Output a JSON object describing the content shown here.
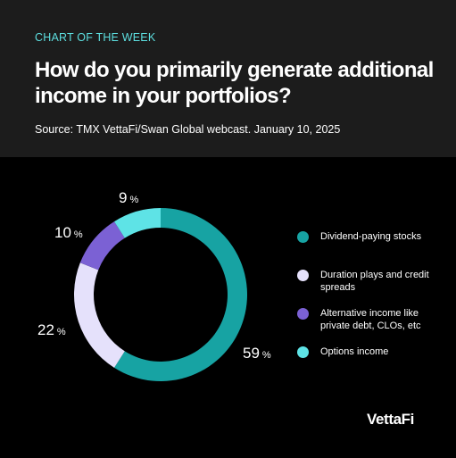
{
  "header": {
    "kicker": "CHART OF THE WEEK",
    "title": "How do you primarily generate additional income in your portfolios?",
    "source": "Source: TMX VettaFi/Swan Global webcast. January 10, 2025"
  },
  "chart_data": {
    "type": "pie",
    "style": "donut",
    "title": "How do you primarily generate additional income in your portfolios?",
    "categories": [
      "Dividend-paying stocks",
      "Duration plays and credit spreads",
      "Alternative income like private debt, CLOs, etc",
      "Options income"
    ],
    "values": [
      59,
      22,
      10,
      9
    ],
    "labels": [
      "59",
      "22",
      "10",
      "9"
    ],
    "unit": "%",
    "colors": [
      "#17a3a3",
      "#e5e1fb",
      "#7b61d4",
      "#5ee3e6"
    ],
    "legend_position": "right"
  },
  "legend": {
    "items": [
      {
        "label": "Dividend-paying stocks",
        "color": "#17a3a3"
      },
      {
        "label": "Duration plays and credit spreads",
        "color": "#e5e1fb"
      },
      {
        "label": "Alternative income like private debt, CLOs, etc",
        "color": "#7b61d4"
      },
      {
        "label": "Options income",
        "color": "#5ee3e6"
      }
    ]
  },
  "brand": {
    "logo": "VettaFi"
  }
}
